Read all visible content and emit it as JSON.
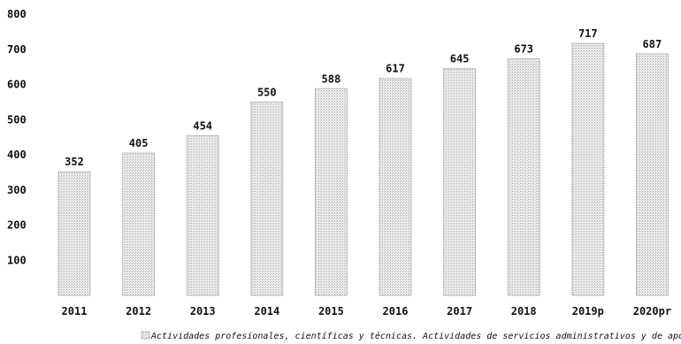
{
  "chart_data": {
    "type": "bar",
    "categories": [
      "2011",
      "2012",
      "2013",
      "2014",
      "2015",
      "2016",
      "2017",
      "2018",
      "2019p",
      "2020pr"
    ],
    "values": [
      352,
      405,
      454,
      550,
      588,
      617,
      645,
      673,
      717,
      687
    ],
    "data_labels": [
      "352",
      "405",
      "454",
      "550",
      "588",
      "617",
      "645",
      "673",
      "717",
      "687"
    ],
    "yticks": [
      100,
      200,
      300,
      400,
      500,
      600,
      700,
      800
    ],
    "ylim": [
      0,
      800
    ],
    "legend": [
      "Actividades profesionales, científicas y técnicas. Actividades de servicios administrativos y de apoyo"
    ],
    "legend_position": "bottom",
    "grid": false,
    "colors": {
      "bar_fill": "#d9d9d9",
      "bar_stroke": "#888888",
      "text": "#111111"
    }
  }
}
